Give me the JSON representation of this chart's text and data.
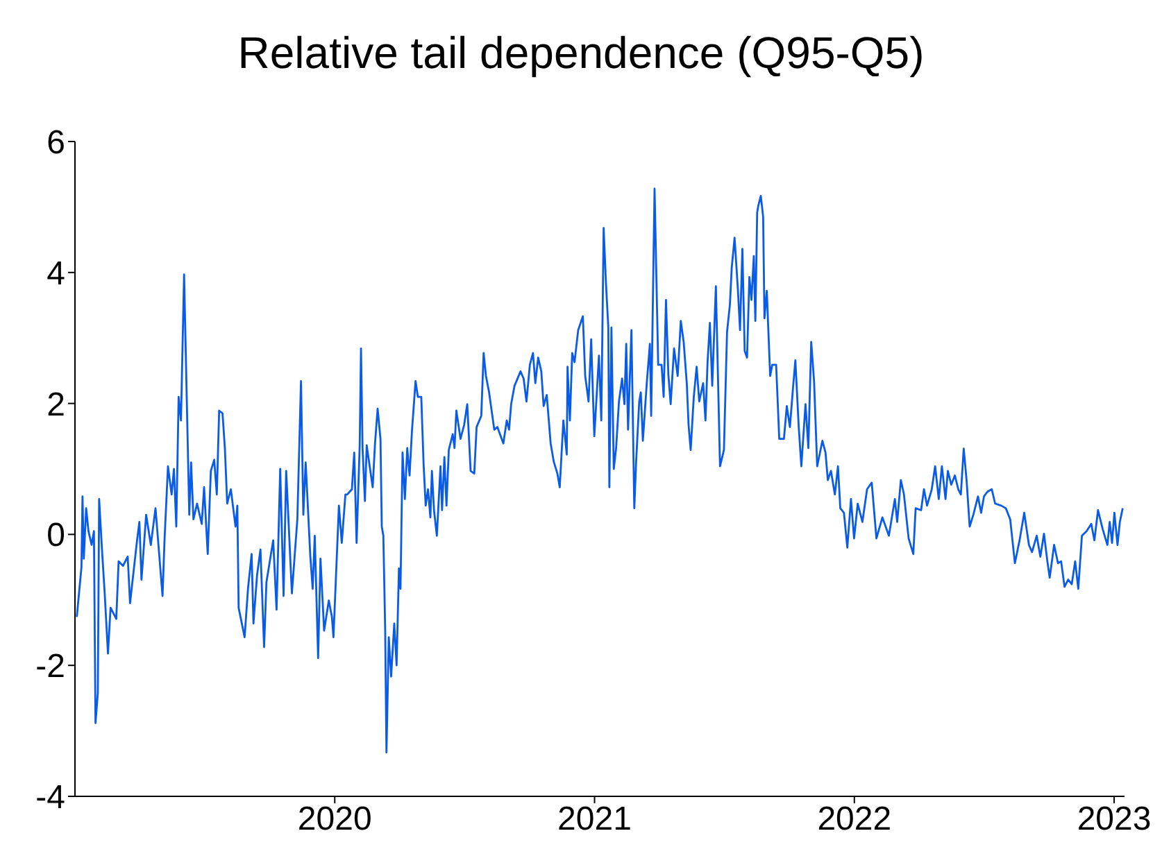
{
  "chart_data": {
    "type": "line",
    "title": "Relative tail dependence (Q95-Q5)",
    "xlim": [
      2019.0,
      2023.04
    ],
    "xticks": [
      2020,
      2021,
      2022,
      2023
    ],
    "ylim": [
      -4,
      6
    ],
    "yticks": [
      -4,
      -2,
      0,
      2,
      4,
      6
    ],
    "series": [
      {
        "color": "#0a5be6",
        "x": [
          2019.007,
          2019.025,
          2019.029,
          2019.034,
          2019.043,
          2019.052,
          2019.064,
          2019.073,
          2019.079,
          2019.088,
          2019.093,
          2019.105,
          2019.114,
          2019.127,
          2019.137,
          2019.159,
          2019.168,
          2019.185,
          2019.203,
          2019.212,
          2019.239,
          2019.248,
          2019.256,
          2019.274,
          2019.292,
          2019.31,
          2019.337,
          2019.345,
          2019.358,
          2019.372,
          2019.381,
          2019.39,
          2019.399,
          2019.408,
          2019.42,
          2019.429,
          2019.44,
          2019.447,
          2019.456,
          2019.47,
          2019.488,
          2019.497,
          2019.511,
          2019.523,
          2019.536,
          2019.546,
          2019.555,
          2019.568,
          2019.577,
          2019.586,
          2019.6,
          2019.618,
          2019.625,
          2019.63,
          2019.653,
          2019.666,
          2019.68,
          2019.687,
          2019.701,
          2019.714,
          2019.728,
          2019.737,
          2019.763,
          2019.776,
          2019.79,
          2019.803,
          2019.813,
          2019.835,
          2019.856,
          2019.87,
          2019.879,
          2019.888,
          2019.906,
          2019.915,
          2019.923,
          2019.936,
          2019.945,
          2019.959,
          2019.977,
          2019.989,
          2019.995,
          2020.016,
          2020.027,
          2020.041,
          2020.048,
          2020.066,
          2020.075,
          2020.084,
          2020.096,
          2020.101,
          2020.107,
          2020.116,
          2020.123,
          2020.137,
          2020.146,
          2020.155,
          2020.165,
          2020.176,
          2020.181,
          2020.187,
          2020.194,
          2020.199,
          2020.208,
          2020.217,
          2020.229,
          2020.238,
          2020.247,
          2020.253,
          2020.261,
          2020.27,
          2020.279,
          2020.288,
          2020.297,
          2020.311,
          2020.32,
          2020.333,
          2020.342,
          2020.35,
          2020.359,
          2020.368,
          2020.374,
          2020.382,
          2020.393,
          2020.407,
          2020.413,
          2020.422,
          2020.43,
          2020.439,
          2020.454,
          2020.461,
          2020.468,
          2020.484,
          2020.498,
          2020.51,
          2020.523,
          2020.537,
          2020.546,
          2020.564,
          2020.573,
          2020.582,
          2020.594,
          2020.614,
          2020.626,
          2020.649,
          2020.662,
          2020.671,
          2020.679,
          2020.692,
          2020.715,
          2020.727,
          2020.738,
          2020.751,
          2020.763,
          2020.772,
          2020.783,
          2020.795,
          2020.804,
          2020.816,
          2020.831,
          2020.843,
          2020.857,
          2020.866,
          2020.88,
          2020.893,
          2020.896,
          2020.905,
          2020.914,
          2020.923,
          2020.937,
          2020.955,
          2020.964,
          2020.977,
          2020.987,
          2020.999,
          2021.017,
          2021.026,
          2021.035,
          2021.044,
          2021.053,
          2021.057,
          2021.065,
          2021.074,
          2021.083,
          2021.094,
          2021.106,
          2021.115,
          2021.122,
          2021.129,
          2021.142,
          2021.153,
          2021.16,
          2021.172,
          2021.178,
          2021.186,
          2021.201,
          2021.213,
          2021.218,
          2021.231,
          2021.245,
          2021.258,
          2021.266,
          2021.275,
          2021.284,
          2021.293,
          2021.306,
          2021.32,
          2021.332,
          2021.343,
          2021.355,
          2021.362,
          2021.37,
          2021.382,
          2021.393,
          2021.403,
          2021.418,
          2021.427,
          2021.435,
          2021.444,
          2021.453,
          2021.467,
          2021.475,
          2021.483,
          2021.498,
          2021.51,
          2021.521,
          2021.528,
          2021.539,
          2021.551,
          2021.56,
          2021.569,
          2021.578,
          2021.587,
          2021.596,
          2021.604,
          2021.613,
          2021.619,
          2021.626,
          2021.631,
          2021.64,
          2021.649,
          2021.654,
          2021.663,
          2021.676,
          2021.684,
          2021.699,
          2021.711,
          2021.729,
          2021.74,
          2021.752,
          2021.764,
          2021.773,
          2021.786,
          2021.796,
          2021.812,
          2021.823,
          2021.834,
          2021.845,
          2021.857,
          2021.877,
          2021.889,
          2021.898,
          2021.91,
          2021.925,
          2021.937,
          2021.946,
          2021.96,
          2021.973,
          2021.987,
          2021.999,
          2022.013,
          2022.031,
          2022.049,
          2022.067,
          2022.085,
          2022.108,
          2022.133,
          2022.156,
          2022.165,
          2022.179,
          2022.191,
          2022.209,
          2022.227,
          2022.236,
          2022.257,
          2022.268,
          2022.28,
          2022.298,
          2022.311,
          2022.325,
          2022.337,
          2022.351,
          2022.36,
          2022.373,
          2022.387,
          2022.4,
          2022.41,
          2022.421,
          2022.432,
          2022.444,
          2022.458,
          2022.476,
          2022.488,
          2022.499,
          2022.512,
          2022.529,
          2022.542,
          2022.565,
          2022.583,
          2022.6,
          2022.618,
          2022.636,
          2022.654,
          2022.672,
          2022.684,
          2022.702,
          2022.716,
          2022.73,
          2022.743,
          2022.752,
          2022.769,
          2022.784,
          2022.796,
          2022.809,
          2022.823,
          2022.837,
          2022.85,
          2022.862,
          2022.876,
          2022.894,
          2022.912,
          2022.924,
          2022.938,
          2022.956,
          2022.974,
          2022.983,
          2022.992,
          2023.001,
          2023.013,
          2023.022,
          2023.033
        ],
        "values": [
          -1.26,
          -0.5,
          0.58,
          -0.37,
          0.4,
          0.05,
          -0.16,
          0.05,
          -2.88,
          -2.42,
          0.54,
          -0.3,
          -0.87,
          -1.82,
          -1.12,
          -1.29,
          -0.41,
          -0.48,
          -0.34,
          -1.05,
          -0.09,
          0.19,
          -0.69,
          0.3,
          -0.16,
          0.4,
          -0.94,
          -0.06,
          1.04,
          0.61,
          1.0,
          0.12,
          2.1,
          1.74,
          3.97,
          2.31,
          0.3,
          1.1,
          0.23,
          0.47,
          0.16,
          0.72,
          -0.3,
          0.97,
          1.14,
          0.61,
          1.89,
          1.85,
          1.32,
          0.47,
          0.69,
          0.12,
          0.44,
          -1.12,
          -1.57,
          -0.83,
          -0.3,
          -1.36,
          -0.62,
          -0.23,
          -1.72,
          -0.73,
          -0.09,
          -1.15,
          1.0,
          -0.94,
          0.97,
          -0.9,
          0.23,
          2.34,
          0.3,
          1.1,
          -0.34,
          -0.83,
          -0.02,
          -1.89,
          -0.37,
          -1.47,
          -1.01,
          -1.26,
          -1.57,
          0.44,
          -0.13,
          0.61,
          0.61,
          0.69,
          1.25,
          -0.13,
          1.36,
          2.84,
          1.32,
          0.51,
          1.36,
          0.97,
          0.72,
          1.39,
          1.92,
          1.46,
          0.12,
          -0.02,
          -1.43,
          -3.33,
          -1.57,
          -2.17,
          -1.36,
          -2.0,
          -0.52,
          -0.83,
          1.25,
          0.54,
          1.32,
          0.9,
          1.57,
          2.34,
          2.1,
          2.1,
          1.07,
          0.44,
          0.69,
          0.26,
          0.97,
          0.37,
          -0.02,
          1.04,
          0.37,
          1.18,
          0.44,
          1.29,
          1.53,
          1.32,
          1.89,
          1.46,
          1.67,
          1.99,
          0.97,
          0.93,
          1.64,
          1.81,
          2.77,
          2.42,
          2.17,
          1.6,
          1.64,
          1.39,
          1.74,
          1.6,
          1.99,
          2.27,
          2.49,
          2.38,
          2.03,
          2.59,
          2.77,
          2.31,
          2.7,
          2.49,
          1.96,
          2.13,
          1.39,
          1.11,
          0.93,
          0.72,
          1.74,
          1.22,
          2.56,
          1.74,
          2.77,
          2.63,
          3.12,
          3.33,
          2.42,
          2.03,
          2.98,
          1.5,
          2.73,
          1.74,
          4.68,
          3.83,
          3.16,
          0.72,
          3.16,
          1.0,
          1.32,
          2.03,
          2.38,
          1.99,
          2.91,
          1.6,
          3.12,
          0.4,
          1.11,
          2.03,
          2.17,
          1.43,
          2.31,
          2.91,
          1.81,
          5.28,
          2.59,
          2.59,
          2.1,
          3.58,
          2.45,
          1.99,
          2.84,
          2.42,
          3.26,
          2.94,
          2.31,
          1.67,
          1.29,
          2.1,
          2.56,
          2.03,
          2.31,
          1.74,
          2.63,
          3.23,
          2.27,
          3.79,
          2.42,
          1.04,
          1.29,
          3.09,
          3.51,
          4.07,
          4.53,
          3.79,
          3.12,
          4.36,
          2.8,
          2.7,
          3.93,
          3.58,
          4.25,
          3.26,
          4.92,
          5.03,
          5.17,
          4.85,
          3.3,
          3.72,
          2.42,
          2.59,
          2.59,
          1.46,
          1.46,
          1.96,
          1.64,
          2.24,
          2.66,
          1.64,
          1.04,
          1.99,
          1.32,
          2.94,
          2.34,
          1.04,
          1.43,
          1.25,
          0.83,
          0.97,
          0.61,
          1.04,
          0.4,
          0.33,
          -0.2,
          0.54,
          -0.06,
          0.47,
          0.19,
          0.69,
          0.79,
          -0.06,
          0.26,
          -0.02,
          0.54,
          0.19,
          0.83,
          0.61,
          -0.06,
          -0.3,
          0.4,
          0.37,
          0.69,
          0.44,
          0.69,
          1.04,
          0.54,
          1.04,
          0.54,
          0.97,
          0.76,
          0.9,
          0.69,
          0.61,
          1.31,
          0.83,
          0.12,
          0.3,
          0.58,
          0.33,
          0.58,
          0.65,
          0.69,
          0.47,
          0.44,
          0.4,
          0.23,
          -0.44,
          -0.09,
          0.33,
          -0.16,
          -0.27,
          -0.02,
          -0.34,
          0.01,
          -0.41,
          -0.66,
          -0.16,
          -0.44,
          -0.41,
          -0.8,
          -0.69,
          -0.76,
          -0.41,
          -0.83,
          -0.02,
          0.05,
          0.16,
          -0.09,
          0.37,
          0.08,
          -0.16,
          0.19,
          -0.13,
          0.33,
          -0.16,
          0.19,
          0.4
        ]
      }
    ]
  }
}
